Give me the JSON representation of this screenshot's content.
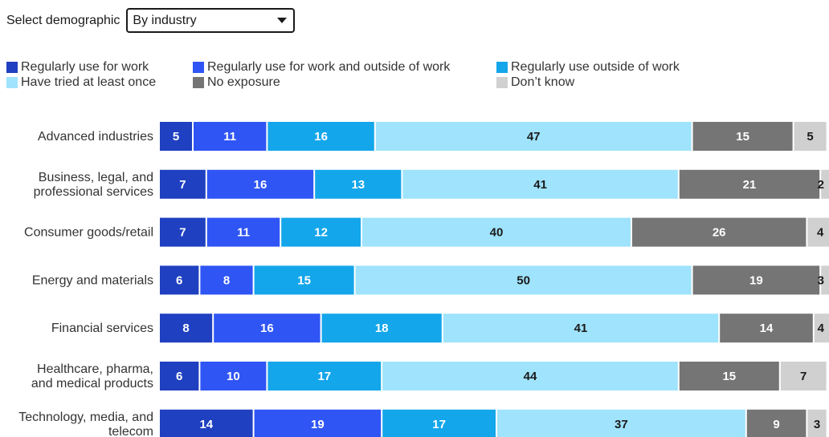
{
  "selector": {
    "label": "Select demographic",
    "value": "By industry"
  },
  "chart_data": {
    "type": "bar",
    "orientation": "horizontal",
    "stacked": true,
    "categories": [
      [
        "Advanced industries"
      ],
      [
        "Business, legal, and",
        "professional services"
      ],
      [
        "Consumer goods/retail"
      ],
      [
        "Energy and materials"
      ],
      [
        "Financial services"
      ],
      [
        "Healthcare, pharma,",
        "and medical products"
      ],
      [
        "Technology, media, and",
        "telecom"
      ]
    ],
    "series": [
      {
        "name": "Regularly use for work",
        "color": "#1f40c0",
        "label_color": "#ffffff",
        "values": [
          5,
          7,
          7,
          6,
          8,
          6,
          14
        ]
      },
      {
        "name": "Regularly use for work and outside of work",
        "color": "#2f55f4",
        "label_color": "#ffffff",
        "values": [
          11,
          16,
          11,
          8,
          16,
          10,
          19
        ]
      },
      {
        "name": "Regularly use outside of work",
        "color": "#14a6ea",
        "label_color": "#ffffff",
        "values": [
          16,
          13,
          12,
          15,
          18,
          17,
          17
        ]
      },
      {
        "name": "Have tried at least once",
        "color": "#9fe3fc",
        "label_color": "#1a1a1a",
        "values": [
          47,
          41,
          40,
          50,
          41,
          44,
          37
        ]
      },
      {
        "name": "No exposure",
        "color": "#757575",
        "label_color": "#ffffff",
        "values": [
          15,
          21,
          26,
          19,
          14,
          15,
          9
        ]
      },
      {
        "name": "Don’t know",
        "color": "#d0d0d0",
        "label_color": "#1a1a1a",
        "values": [
          5,
          2,
          4,
          3,
          4,
          7,
          3
        ]
      }
    ],
    "xlim": [
      0,
      100
    ],
    "legend_position": "top-left",
    "grid": false
  }
}
